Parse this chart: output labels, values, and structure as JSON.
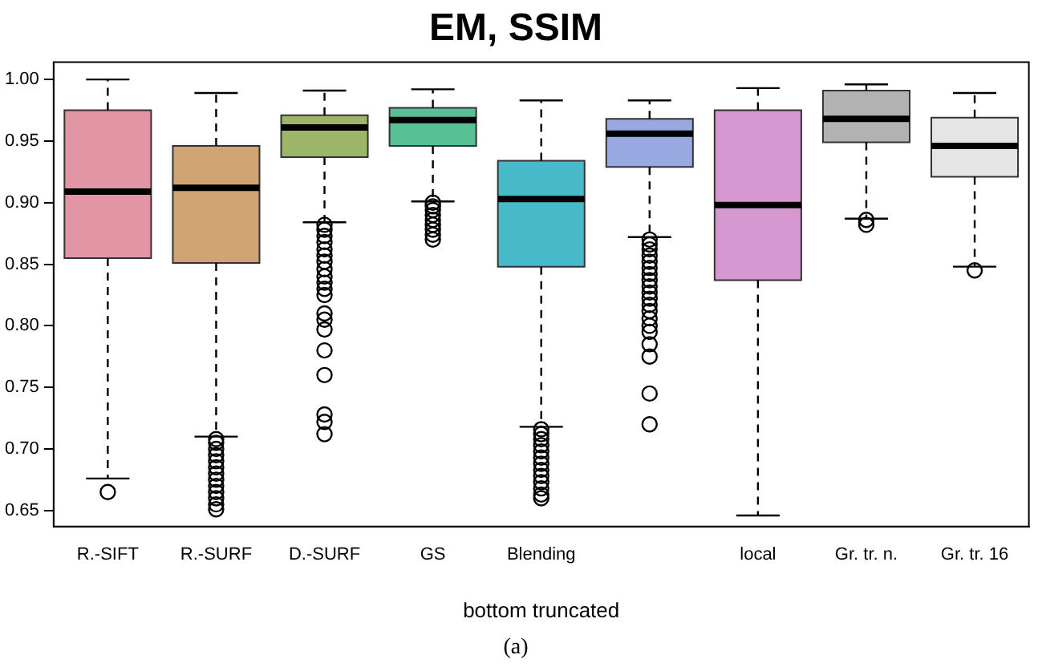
{
  "chart_data": {
    "type": "box",
    "title": "EM, SSIM",
    "xlabel": "bottom truncated",
    "annotations": [
      "(a)"
    ],
    "categories": [
      "R.-SIFT",
      "R.-SURF",
      "D.-SURF",
      "GS",
      "Blending",
      null,
      "local",
      "Gr. tr. n.",
      "Gr. tr. 16"
    ],
    "colors": [
      "#e295a5",
      "#cfa472",
      "#9cb56a",
      "#59bf95",
      "#47bac9",
      "#98a9e2",
      "#d598d0",
      "#b2b2b2",
      "#e5e5e5"
    ],
    "ylim": [
      0.637,
      1.014
    ],
    "yticks": [
      {
        "value": 0.65,
        "label": "0.65"
      },
      {
        "value": 0.7,
        "label": "0.70"
      },
      {
        "value": 0.75,
        "label": "0.75"
      },
      {
        "value": 0.8,
        "label": "0.80"
      },
      {
        "value": 0.85,
        "label": "0.85"
      },
      {
        "value": 0.9,
        "label": "0.90"
      },
      {
        "value": 0.95,
        "label": "0.95"
      },
      {
        "value": 1,
        "label": "1.00"
      }
    ],
    "grid": false,
    "boxes": [
      {
        "low": 0.676,
        "q1": 0.855,
        "median": 0.909,
        "q3": 0.975,
        "high": 1.0,
        "outliers": [
          0.665
        ]
      },
      {
        "low": 0.71,
        "q1": 0.851,
        "median": 0.912,
        "q3": 0.946,
        "high": 0.989,
        "outliers": [
          0.708,
          0.705,
          0.7,
          0.695,
          0.69,
          0.685,
          0.68,
          0.675,
          0.67,
          0.665,
          0.66,
          0.655,
          0.651
        ]
      },
      {
        "low": 0.884,
        "q1": 0.937,
        "median": 0.961,
        "q3": 0.971,
        "high": 0.991,
        "outliers": [
          0.882,
          0.878,
          0.873,
          0.868,
          0.862,
          0.857,
          0.852,
          0.846,
          0.84,
          0.835,
          0.83,
          0.825,
          0.81,
          0.805,
          0.797,
          0.78,
          0.76,
          0.728,
          0.722,
          0.712
        ]
      },
      {
        "low": 0.901,
        "q1": 0.946,
        "median": 0.967,
        "q3": 0.977,
        "high": 0.992,
        "outliers": [
          0.9,
          0.897,
          0.894,
          0.89,
          0.886,
          0.882,
          0.878,
          0.874,
          0.87
        ]
      },
      {
        "low": 0.718,
        "q1": 0.848,
        "median": 0.903,
        "q3": 0.934,
        "high": 0.983,
        "outliers": [
          0.716,
          0.712,
          0.708,
          0.703,
          0.698,
          0.693,
          0.688,
          0.683,
          0.678,
          0.673,
          0.668,
          0.663,
          0.66
        ]
      },
      {
        "low": 0.872,
        "q1": 0.929,
        "median": 0.956,
        "q3": 0.968,
        "high": 0.983,
        "outliers": [
          0.87,
          0.866,
          0.862,
          0.857,
          0.852,
          0.847,
          0.842,
          0.837,
          0.832,
          0.827,
          0.822,
          0.817,
          0.812,
          0.806,
          0.8,
          0.795,
          0.785,
          0.775,
          0.745,
          0.72
        ]
      },
      {
        "low": 0.646,
        "q1": 0.837,
        "median": 0.898,
        "q3": 0.975,
        "high": 0.993
      },
      {
        "low": 0.887,
        "q1": 0.949,
        "median": 0.968,
        "q3": 0.991,
        "high": 0.996,
        "outliers": [
          0.886,
          0.882
        ]
      },
      {
        "low": 0.848,
        "q1": 0.921,
        "median": 0.946,
        "q3": 0.969,
        "high": 0.989,
        "outliers": [
          0.845
        ]
      }
    ]
  }
}
